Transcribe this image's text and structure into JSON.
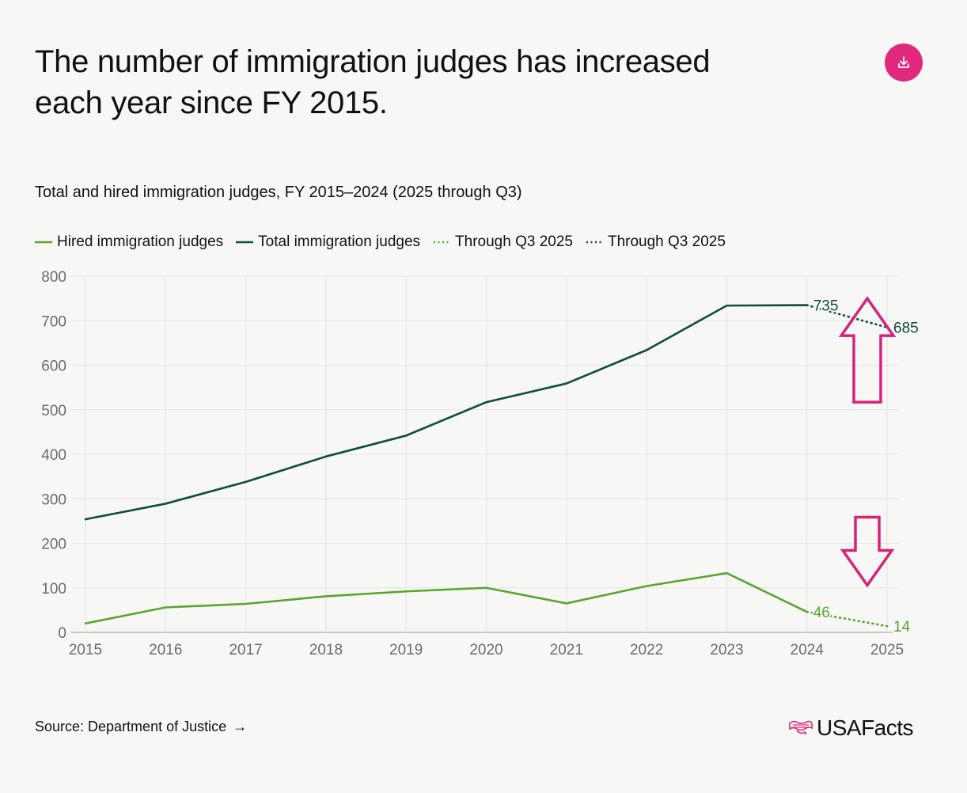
{
  "header": {
    "title": "The number of immigration judges has increased\neach year since FY 2015.",
    "download_icon": "download-icon"
  },
  "chart_data": {
    "type": "line",
    "title": "The number of immigration judges has increased each year since FY 2015.",
    "subtitle": "Total and hired immigration judges, FY 2015–2024 (2025 through Q3)",
    "x": [
      "2015",
      "2016",
      "2017",
      "2018",
      "2019",
      "2020",
      "2021",
      "2022",
      "2023",
      "2024",
      "2025"
    ],
    "ylim": [
      0,
      800
    ],
    "yticks": [
      "0",
      "100",
      "200",
      "300",
      "400",
      "500",
      "600",
      "700",
      "800"
    ],
    "grid": true,
    "legend_position": "top-left",
    "series": [
      {
        "name": "Hired immigration judges",
        "color": "#5aa52e",
        "style": "solid",
        "x": [
          "2015",
          "2016",
          "2017",
          "2018",
          "2019",
          "2020",
          "2021",
          "2022",
          "2023",
          "2024"
        ],
        "values": [
          20,
          56,
          64,
          81,
          92,
          100,
          65,
          104,
          133,
          46
        ]
      },
      {
        "name": "Total immigration judges",
        "color": "#0f4d3c",
        "style": "solid",
        "x": [
          "2015",
          "2016",
          "2017",
          "2018",
          "2019",
          "2020",
          "2021",
          "2022",
          "2023",
          "2024"
        ],
        "values": [
          254,
          289,
          338,
          395,
          442,
          517,
          559,
          634,
          734,
          735
        ]
      },
      {
        "name": "Through Q3 2025",
        "color": "#5aa52e",
        "style": "dotted",
        "x": [
          "2024",
          "2025"
        ],
        "values": [
          46,
          14
        ]
      },
      {
        "name": "Through Q3 2025",
        "color": "#0f4d3c",
        "style": "dotted",
        "x": [
          "2024",
          "2025"
        ],
        "values": [
          735,
          685
        ]
      }
    ],
    "data_labels": [
      {
        "x": "2024",
        "value": 735,
        "text": "735",
        "color": "#0f4d3c"
      },
      {
        "x": "2025",
        "value": 685,
        "text": "685",
        "color": "#0f4d3c"
      },
      {
        "x": "2024",
        "value": 46,
        "text": "46",
        "color": "#5aa52e"
      },
      {
        "x": "2025",
        "value": 14,
        "text": "14",
        "color": "#5aa52e"
      }
    ],
    "annotations": [
      {
        "type": "arrow-up",
        "color": "#d6237a",
        "x": "2025",
        "value": 590
      },
      {
        "type": "arrow-down",
        "color": "#d6237a",
        "x": "2025",
        "value": 120
      }
    ]
  },
  "footer": {
    "source": "Source: Department of Justice",
    "brand": "USAFacts"
  }
}
